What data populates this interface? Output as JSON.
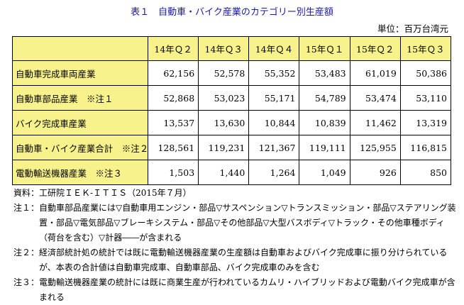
{
  "title": "表１　自動車・バイク産業のカテゴリー別生産額",
  "unit": "単位：百万台湾元",
  "table": {
    "columns": [
      "14年Ｑ２",
      "14年Ｑ３",
      "14年Ｑ４",
      "15年Ｑ１",
      "15年Ｑ２",
      "15年Ｑ３"
    ],
    "rows": [
      {
        "label": "自動車完成車両産業",
        "values": [
          "62,156",
          "52,578",
          "55,352",
          "53,483",
          "61,019",
          "50,386"
        ]
      },
      {
        "label": "自動車部品産業　※注１",
        "values": [
          "52,868",
          "53,023",
          "55,171",
          "54,789",
          "53,474",
          "53,110"
        ]
      },
      {
        "label": "バイク完成車産業",
        "values": [
          "13,537",
          "13,630",
          "10,844",
          "10,839",
          "11,462",
          "13,319"
        ]
      },
      {
        "label": "自動車・バイク産業合計　※注２",
        "values": [
          "128,561",
          "119,231",
          "121,367",
          "119,111",
          "125,955",
          "116,815"
        ]
      },
      {
        "label": "電動輸送機器産業　※注３",
        "values": [
          "1,503",
          "1,440",
          "1,264",
          "1,049",
          "926",
          "850"
        ]
      }
    ]
  },
  "notes": [
    {
      "label": "資料：",
      "text": "工研院ＩＥＫ-ＩＴＩＳ（2015年７月）"
    },
    {
      "label": "注１：",
      "text": "自動車部品産業には▽自動車用エンジン・部品▽サスペンション▽トランスミッション・部品▽ステアリング装置・部品▽電気部品▽ブレーキシステム・部品▽その他部品▽大型バスボディ▽トラック・その他車種ボディ（荷台を含む）▽計器――が含まれる"
    },
    {
      "label": "注２：",
      "text": "経済部統計処の統計では既に電動輸送機器産業の生産額は自動車およびバイク完成車に振り分けられているが、本表の合計値は自動車完成車、自動車部品、バイク完成車のみを含む"
    },
    {
      "label": "注３：",
      "text": "電動輸送機器産業の統計には既に商業生産が行われているカムリ・ハイブリッドおよび電動バイク完成車が含まれる"
    }
  ]
}
